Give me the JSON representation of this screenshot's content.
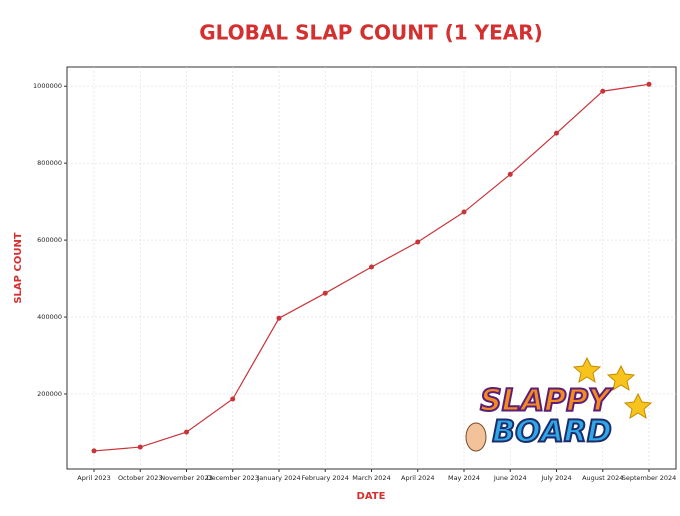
{
  "chart_data": {
    "type": "line",
    "title": "GLOBAL SLAP COUNT (1 YEAR)",
    "x_label": "DATE",
    "y_label": "SLAP COUNT",
    "categories": [
      "April 2023",
      "October 2023",
      "November 2023",
      "December 2023",
      "January 2024",
      "February 2024",
      "March 2024",
      "April 2024",
      "May 2024",
      "June 2024",
      "July 2024",
      "August 2024",
      "September 2024"
    ],
    "series": [
      {
        "name": "Slap Count",
        "color": "#c8343a",
        "values": [
          52000,
          62000,
          101000,
          187000,
          397000,
          462000,
          530000,
          595000,
          673000,
          771000,
          878000,
          987000,
          1005000
        ]
      }
    ],
    "ylim": [
      5000,
      1050000
    ],
    "yticks": [
      200000,
      400000,
      600000,
      800000,
      1000000
    ],
    "grid": true
  },
  "logo": {
    "line1": "SLAPPY",
    "line2": "BOARD"
  }
}
